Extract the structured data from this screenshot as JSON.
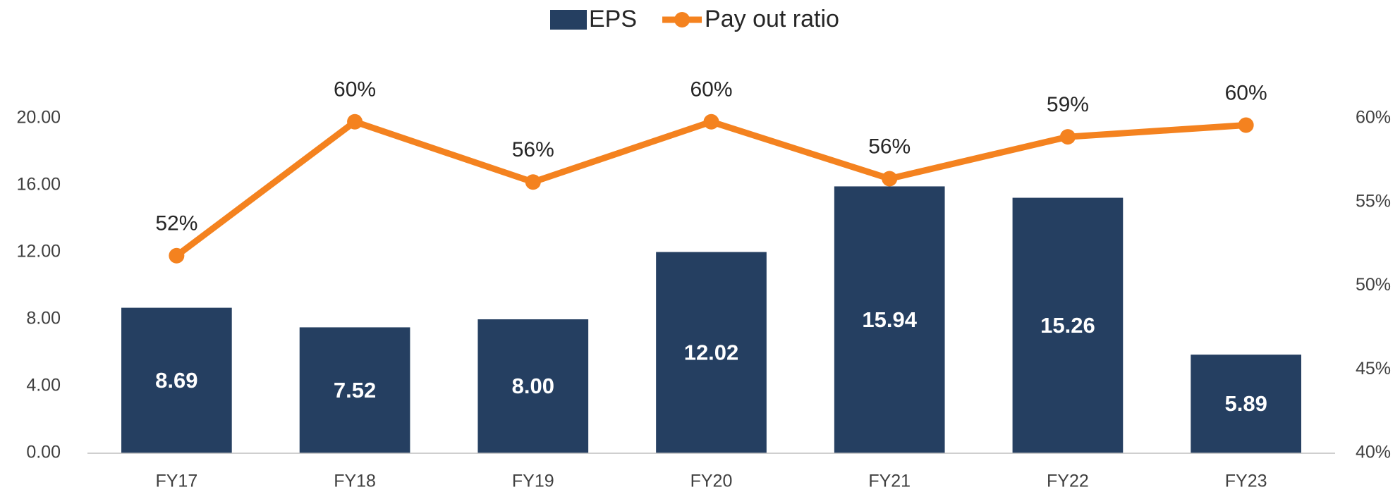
{
  "chart_data": {
    "type": "bar_line",
    "categories": [
      "FY17",
      "FY18",
      "FY19",
      "FY20",
      "FY21",
      "FY22",
      "FY23"
    ],
    "series": [
      {
        "name": "EPS",
        "type": "bar",
        "color": "#253f61",
        "axis": "y",
        "values": [
          8.69,
          7.52,
          8.0,
          12.02,
          15.94,
          15.26,
          5.89
        ],
        "value_labels": [
          "8.69",
          "7.52",
          "8.00",
          "12.02",
          "15.94",
          "15.26",
          "5.89"
        ]
      },
      {
        "name": "Pay out ratio",
        "type": "line",
        "color": "#f4821f",
        "axis": "y2",
        "values": [
          51.8,
          59.8,
          56.2,
          59.8,
          56.4,
          58.9,
          59.6
        ],
        "value_labels": [
          "52%",
          "60%",
          "56%",
          "60%",
          "56%",
          "59%",
          "60%"
        ]
      }
    ],
    "ylim": [
      0,
      20
    ],
    "yticks": [
      {
        "value": 0,
        "label": "0.00"
      },
      {
        "value": 4,
        "label": "4.00"
      },
      {
        "value": 8,
        "label": "8.00"
      },
      {
        "value": 12,
        "label": "12.00"
      },
      {
        "value": 16,
        "label": "16.00"
      },
      {
        "value": 20,
        "label": "20.00"
      }
    ],
    "y2lim": [
      40,
      60
    ],
    "y2ticks": [
      {
        "value": 40,
        "label": "40%"
      },
      {
        "value": 45,
        "label": "45%"
      },
      {
        "value": 50,
        "label": "50%"
      },
      {
        "value": 55,
        "label": "55%"
      },
      {
        "value": 60,
        "label": "60%"
      }
    ],
    "legend": "top",
    "grid": false
  }
}
